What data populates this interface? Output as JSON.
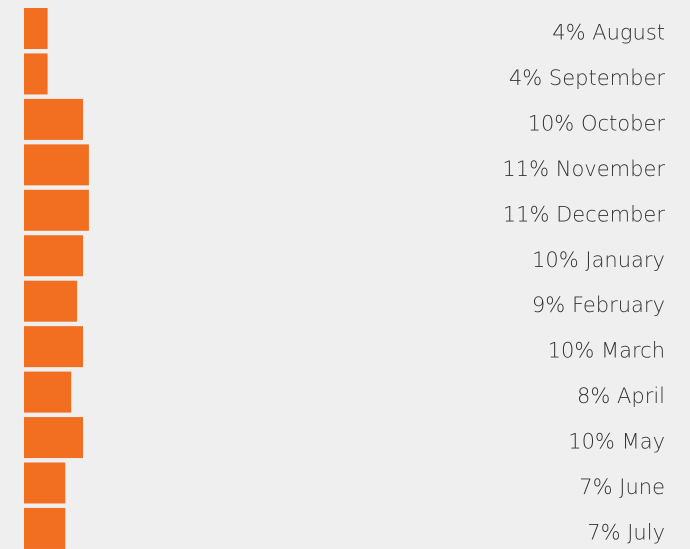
{
  "chart_data": {
    "type": "bar",
    "orientation": "horizontal",
    "color": "#f26f21",
    "categories": [
      "August",
      "September",
      "October",
      "November",
      "December",
      "January",
      "February",
      "March",
      "April",
      "May",
      "June",
      "July"
    ],
    "values": [
      4,
      4,
      10,
      11,
      11,
      10,
      9,
      10,
      8,
      10,
      7,
      7
    ],
    "value_labels": [
      "4%",
      "4%",
      "10%",
      "11%",
      "11%",
      "10%",
      "9%",
      "10%",
      "8%",
      "10%",
      "7%",
      "7%"
    ]
  }
}
